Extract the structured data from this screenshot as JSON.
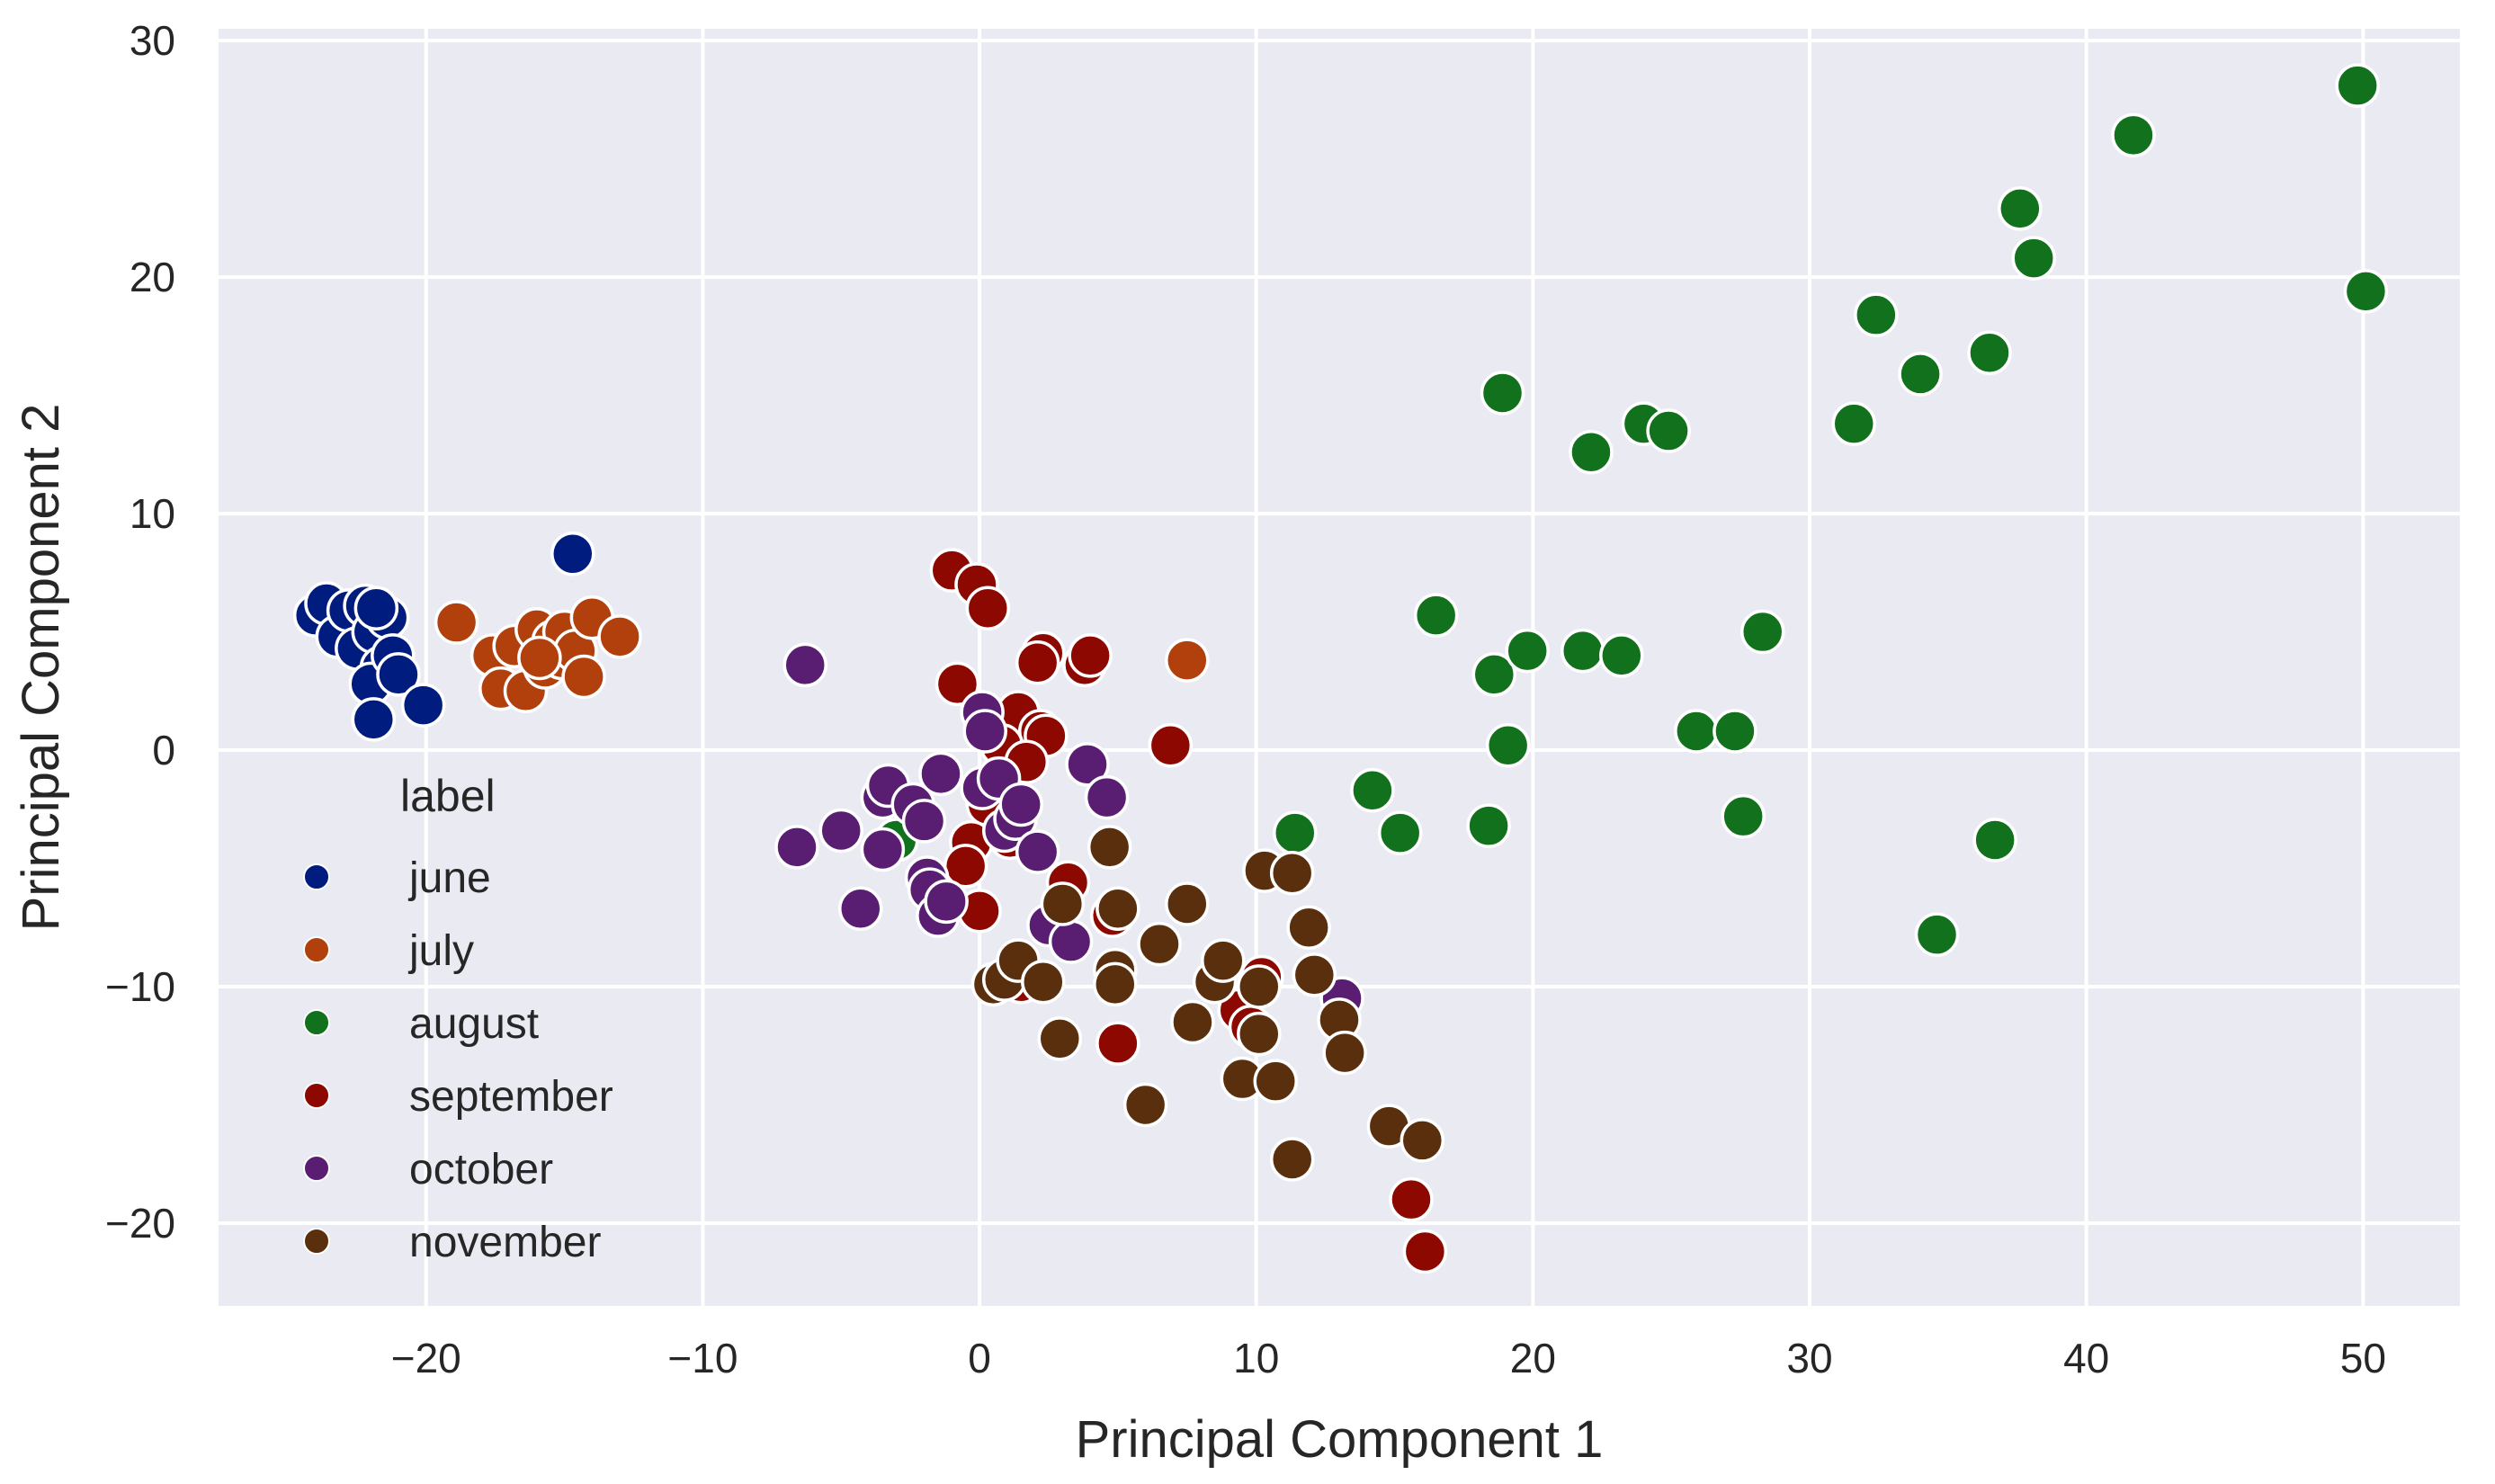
{
  "chart_data": {
    "type": "scatter",
    "title": "",
    "xlabel": "Principal Component 1",
    "ylabel": "Principal Component 2",
    "xlim": [
      -27.5,
      53.5
    ],
    "ylim": [
      -23.5,
      30.5
    ],
    "xticks": [
      -20,
      -10,
      0,
      10,
      20,
      30,
      40,
      50
    ],
    "yticks": [
      -20,
      -10,
      0,
      10,
      20,
      30
    ],
    "grid": true,
    "legend": {
      "title": "label",
      "placement": "center-left"
    },
    "series": [
      {
        "name": "june",
        "color": "#001c7f",
        "points": [
          [
            -24,
            5.7
          ],
          [
            -23.6,
            6.2
          ],
          [
            -23.2,
            4.8
          ],
          [
            -22.8,
            5.9
          ],
          [
            -22.5,
            4.3
          ],
          [
            -22.2,
            6.1
          ],
          [
            -21.9,
            5.0
          ],
          [
            -21.6,
            3.5
          ],
          [
            -21.4,
            5.6
          ],
          [
            -22.0,
            2.8
          ],
          [
            -21.2,
            4.0
          ],
          [
            -21.0,
            3.2
          ],
          [
            -21.8,
            6.0
          ],
          [
            -21.9,
            1.3
          ],
          [
            -20.1,
            1.9
          ],
          [
            -14.7,
            8.3
          ]
        ]
      },
      {
        "name": "july",
        "color": "#b1400d",
        "points": [
          [
            -18.9,
            5.4
          ],
          [
            -17.6,
            4.0
          ],
          [
            -17.3,
            2.6
          ],
          [
            -16.8,
            4.4
          ],
          [
            -16.4,
            2.5
          ],
          [
            -16.0,
            5.1
          ],
          [
            -15.7,
            3.5
          ],
          [
            -15.4,
            4.6
          ],
          [
            -15.1,
            3.9
          ],
          [
            -15.0,
            5.0
          ],
          [
            -14.6,
            4.2
          ],
          [
            -14.3,
            3.1
          ],
          [
            -14.0,
            5.6
          ],
          [
            -13.0,
            4.8
          ],
          [
            -15.9,
            3.9
          ],
          [
            7.5,
            3.8
          ]
        ]
      },
      {
        "name": "august",
        "color": "#12711c",
        "points": [
          [
            49.8,
            28.1
          ],
          [
            41.7,
            26.0
          ],
          [
            37.6,
            22.9
          ],
          [
            38.1,
            20.8
          ],
          [
            50.1,
            19.4
          ],
          [
            32.4,
            18.4
          ],
          [
            34.0,
            15.9
          ],
          [
            36.5,
            16.8
          ],
          [
            18.9,
            15.1
          ],
          [
            22.1,
            12.6
          ],
          [
            24.0,
            13.8
          ],
          [
            24.9,
            13.5
          ],
          [
            31.6,
            13.8
          ],
          [
            16.5,
            5.7
          ],
          [
            28.3,
            5.0
          ],
          [
            18.6,
            3.2
          ],
          [
            19.8,
            4.2
          ],
          [
            21.8,
            4.2
          ],
          [
            23.2,
            4.0
          ],
          [
            19.1,
            0.2
          ],
          [
            25.9,
            0.8
          ],
          [
            27.3,
            0.8
          ],
          [
            27.6,
            -2.8
          ],
          [
            14.2,
            -1.7
          ],
          [
            15.2,
            -3.5
          ],
          [
            11.4,
            -3.5
          ],
          [
            18.4,
            -3.2
          ],
          [
            36.7,
            -3.8
          ],
          [
            34.6,
            -7.8
          ],
          [
            -3.0,
            -3.8
          ]
        ]
      },
      {
        "name": "september",
        "color": "#8c0800",
        "points": [
          [
            -1.0,
            7.6
          ],
          [
            -0.1,
            7.0
          ],
          [
            0.3,
            6.0
          ],
          [
            -0.8,
            2.8
          ],
          [
            2.3,
            4.1
          ],
          [
            2.1,
            3.7
          ],
          [
            3.8,
            3.6
          ],
          [
            4.0,
            4.0
          ],
          [
            1.4,
            1.6
          ],
          [
            2.2,
            0.8
          ],
          [
            2.4,
            0.6
          ],
          [
            0.8,
            0.2
          ],
          [
            6.9,
            0.2
          ],
          [
            1.7,
            -0.5
          ],
          [
            0.3,
            -2.3
          ],
          [
            -0.3,
            -3.9
          ],
          [
            1.1,
            -3.7
          ],
          [
            -0.5,
            -4.9
          ],
          [
            3.2,
            -5.6
          ],
          [
            4.8,
            -7.0
          ],
          [
            0.0,
            -6.8
          ],
          [
            1.5,
            -9.8
          ],
          [
            5.0,
            -12.4
          ],
          [
            9.4,
            -11.0
          ],
          [
            9.8,
            -11.7
          ],
          [
            10.2,
            -9.6
          ],
          [
            15.6,
            -19.0
          ],
          [
            16.1,
            -21.2
          ]
        ]
      },
      {
        "name": "october",
        "color": "#591e71",
        "points": [
          [
            -6.3,
            3.6
          ],
          [
            -6.6,
            -4.1
          ],
          [
            -5.0,
            -3.4
          ],
          [
            -4.3,
            -6.7
          ],
          [
            -3.5,
            -2.0
          ],
          [
            -3.5,
            -4.2
          ],
          [
            -3.3,
            -1.5
          ],
          [
            -2.4,
            -2.3
          ],
          [
            -1.9,
            -5.4
          ],
          [
            -2.0,
            -3.0
          ],
          [
            -1.8,
            -5.9
          ],
          [
            -1.5,
            -7.0
          ],
          [
            -1.4,
            -1.0
          ],
          [
            -1.2,
            -6.4
          ],
          [
            0.1,
            -1.6
          ],
          [
            0.1,
            1.6
          ],
          [
            0.2,
            0.8
          ],
          [
            0.7,
            -1.2
          ],
          [
            0.9,
            -3.4
          ],
          [
            1.3,
            -2.9
          ],
          [
            1.5,
            -2.3
          ],
          [
            2.1,
            -4.3
          ],
          [
            2.5,
            -7.4
          ],
          [
            3.3,
            -8.1
          ],
          [
            3.9,
            -0.6
          ],
          [
            4.6,
            -2.0
          ],
          [
            13.1,
            -10.5
          ]
        ]
      },
      {
        "name": "november",
        "color": "#592f0d",
        "points": [
          [
            4.7,
            -4.1
          ],
          [
            5.0,
            -6.7
          ],
          [
            3.0,
            -6.5
          ],
          [
            4.9,
            -9.3
          ],
          [
            4.9,
            -9.9
          ],
          [
            0.5,
            -9.9
          ],
          [
            0.9,
            -9.7
          ],
          [
            1.4,
            -8.9
          ],
          [
            2.3,
            -9.8
          ],
          [
            2.9,
            -12.2
          ],
          [
            6.0,
            -15.0
          ],
          [
            6.5,
            -8.2
          ],
          [
            7.5,
            -6.5
          ],
          [
            7.7,
            -11.5
          ],
          [
            8.5,
            -9.8
          ],
          [
            8.8,
            -8.9
          ],
          [
            9.5,
            -13.9
          ],
          [
            10.1,
            -10.0
          ],
          [
            10.1,
            -12.0
          ],
          [
            10.3,
            -5.1
          ],
          [
            10.7,
            -14.0
          ],
          [
            11.3,
            -5.2
          ],
          [
            11.3,
            -17.3
          ],
          [
            11.9,
            -7.5
          ],
          [
            12.1,
            -9.5
          ],
          [
            13.0,
            -11.4
          ],
          [
            13.2,
            -12.8
          ],
          [
            14.8,
            -15.9
          ],
          [
            16.0,
            -16.5
          ]
        ]
      }
    ]
  }
}
